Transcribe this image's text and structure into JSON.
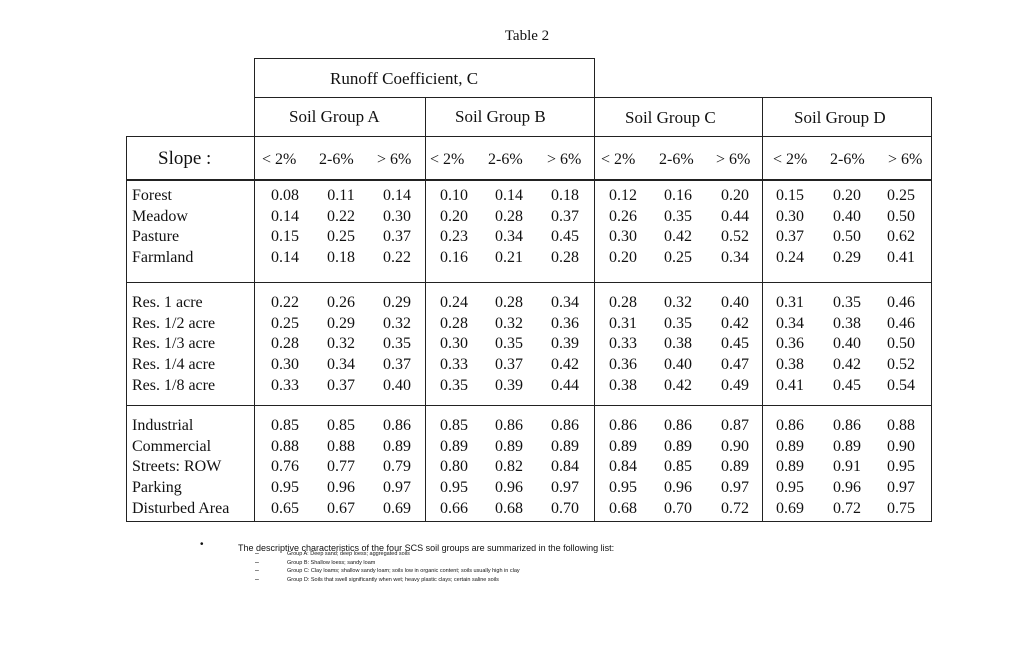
{
  "title": "Table 2",
  "header": {
    "runoff": "Runoff Coefficient, C",
    "groups": [
      "Soil Group A",
      "Soil Group B",
      "Soil Group C",
      "Soil Group D"
    ],
    "slope_label": "Slope :",
    "slope_cols": [
      "< 2%",
      "2-6%",
      "> 6%"
    ]
  },
  "sections": [
    {
      "labels": [
        "Forest",
        "Meadow",
        "Pasture",
        "Farmland"
      ],
      "cols": [
        [
          "0.08",
          "0.14",
          "0.15",
          "0.14"
        ],
        [
          "0.11",
          "0.22",
          "0.25",
          "0.18"
        ],
        [
          "0.14",
          "0.30",
          "0.37",
          "0.22"
        ],
        [
          "0.10",
          "0.20",
          "0.23",
          "0.16"
        ],
        [
          "0.14",
          "0.28",
          "0.34",
          "0.21"
        ],
        [
          "0.18",
          "0.37",
          "0.45",
          "0.28"
        ],
        [
          "0.12",
          "0.26",
          "0.30",
          "0.20"
        ],
        [
          "0.16",
          "0.35",
          "0.42",
          "0.25"
        ],
        [
          "0.20",
          "0.44",
          "0.52",
          "0.34"
        ],
        [
          "0.15",
          "0.30",
          "0.37",
          "0.24"
        ],
        [
          "0.20",
          "0.40",
          "0.50",
          "0.29"
        ],
        [
          "0.25",
          "0.50",
          "0.62",
          "0.41"
        ]
      ]
    },
    {
      "labels": [
        "Res. 1 acre",
        "Res. 1/2 acre",
        "Res. 1/3 acre",
        "Res. 1/4 acre",
        "Res. 1/8 acre"
      ],
      "cols": [
        [
          "0.22",
          "0.25",
          "0.28",
          "0.30",
          "0.33"
        ],
        [
          "0.26",
          "0.29",
          "0.32",
          "0.34",
          "0.37"
        ],
        [
          "0.29",
          "0.32",
          "0.35",
          "0.37",
          "0.40"
        ],
        [
          "0.24",
          "0.28",
          "0.30",
          "0.33",
          "0.35"
        ],
        [
          "0.28",
          "0.32",
          "0.35",
          "0.37",
          "0.39"
        ],
        [
          "0.34",
          "0.36",
          "0.39",
          "0.42",
          "0.44"
        ],
        [
          "0.28",
          "0.31",
          "0.33",
          "0.36",
          "0.38"
        ],
        [
          "0.32",
          "0.35",
          "0.38",
          "0.40",
          "0.42"
        ],
        [
          "0.40",
          "0.42",
          "0.45",
          "0.47",
          "0.49"
        ],
        [
          "0.31",
          "0.34",
          "0.36",
          "0.38",
          "0.41"
        ],
        [
          "0.35",
          "0.38",
          "0.40",
          "0.42",
          "0.45"
        ],
        [
          "0.46",
          "0.46",
          "0.50",
          "0.52",
          "0.54"
        ]
      ]
    },
    {
      "labels": [
        "Industrial",
        "Commercial",
        "Streets: ROW",
        "Parking",
        "Disturbed Area"
      ],
      "cols": [
        [
          "0.85",
          "0.88",
          "0.76",
          "0.95",
          "0.65"
        ],
        [
          "0.85",
          "0.88",
          "0.77",
          "0.96",
          "0.67"
        ],
        [
          "0.86",
          "0.89",
          "0.79",
          "0.97",
          "0.69"
        ],
        [
          "0.85",
          "0.89",
          "0.80",
          "0.95",
          "0.66"
        ],
        [
          "0.86",
          "0.89",
          "0.82",
          "0.96",
          "0.68"
        ],
        [
          "0.86",
          "0.89",
          "0.84",
          "0.97",
          "0.70"
        ],
        [
          "0.86",
          "0.89",
          "0.84",
          "0.95",
          "0.68"
        ],
        [
          "0.86",
          "0.89",
          "0.85",
          "0.96",
          "0.70"
        ],
        [
          "0.87",
          "0.90",
          "0.89",
          "0.97",
          "0.72"
        ],
        [
          "0.86",
          "0.89",
          "0.89",
          "0.95",
          "0.69"
        ],
        [
          "0.86",
          "0.89",
          "0.91",
          "0.96",
          "0.72"
        ],
        [
          "0.88",
          "0.90",
          "0.95",
          "0.97",
          "0.75"
        ]
      ]
    }
  ],
  "notes": {
    "bullet": "•",
    "lead": "The descriptive characteristics of the four SCS soil groups are summarized in the following list:",
    "dash": "–",
    "items": [
      "Group A: Deep sand; deep loess; aggregated soils",
      "Group B: Shallow loess; sandy loam",
      "Group C: Clay loams; shallow sandy loam; soils low in organic content; soils usually high in clay",
      "Group D: Soils that swell significantly when wet; heavy plastic clays; certain saline soils"
    ]
  }
}
